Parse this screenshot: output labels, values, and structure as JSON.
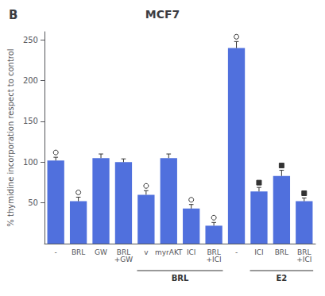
{
  "chart_data": {
    "type": "bar",
    "title": "MCF7",
    "annotations": [
      "B"
    ],
    "ylabel": "% thymidine incorporation respect to control",
    "categories": [
      "-",
      "BRL",
      "GW",
      "BRL\n+GW",
      "v",
      "myrAKT",
      "ICI",
      "BRL\n+ICI",
      "-",
      "ICI",
      "BRL",
      "BRL\n+ICI"
    ],
    "values": [
      102,
      52,
      105,
      100,
      60,
      105,
      43,
      22,
      240,
      64,
      83,
      52
    ],
    "errors": [
      4,
      5,
      5,
      4,
      5,
      5,
      5,
      4,
      8,
      5,
      7,
      4
    ],
    "markers": [
      "o",
      "o",
      null,
      null,
      "o",
      null,
      "o",
      "o",
      "o",
      "s",
      "s",
      "s"
    ],
    "groups": [
      {
        "label": "BRL",
        "bars": [
          4,
          7
        ]
      },
      {
        "label": "E2",
        "bars": [
          9,
          11
        ]
      }
    ],
    "ylim": [
      0,
      260
    ],
    "yticks": [
      50,
      100,
      150,
      200,
      250
    ],
    "grid": false
  }
}
